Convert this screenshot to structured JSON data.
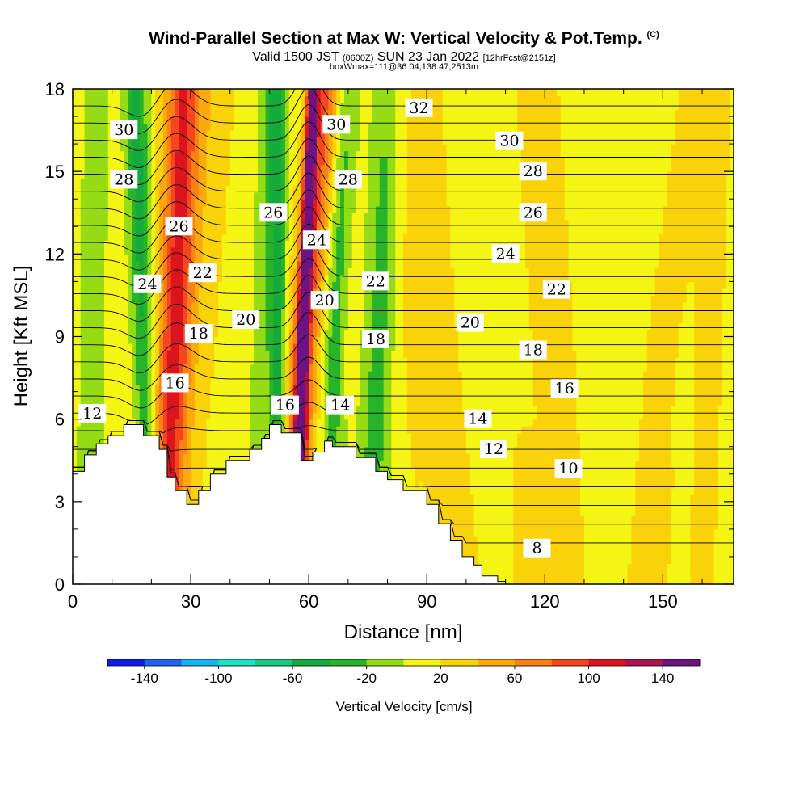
{
  "header": {
    "title_main": "Wind-Parallel Section at Max W: Vertical Velocity & Pot.Temp.",
    "title_mark": "(C)",
    "valid_pre": "Valid 1500 JST",
    "valid_utc": "(0600Z)",
    "valid_date": "SUN 23 Jan 2022",
    "valid_fcst": "[12hrFcst@2151z]",
    "box_info": "boxWmax=111@36.04,138.47,2513m"
  },
  "chart_data": {
    "type": "heatmap",
    "xlabel": "Distance [nm]",
    "ylabel": "Height [Kft MSL]",
    "xlim": [
      0,
      168
    ],
    "ylim": [
      0,
      18
    ],
    "xticks": [
      0,
      30,
      60,
      90,
      120,
      150
    ],
    "yticks": [
      0,
      3,
      6,
      9,
      12,
      15,
      18
    ],
    "colorbar": {
      "label": "Vertical Velocity [cm/s]",
      "tick_labels": [
        -140,
        -100,
        -60,
        -20,
        20,
        60,
        100,
        140
      ],
      "levels": [
        -160,
        -140,
        -120,
        -100,
        -80,
        -60,
        -40,
        -20,
        0,
        20,
        40,
        60,
        80,
        100,
        120,
        140,
        160
      ],
      "colors": [
        "#0a1ee6",
        "#1e64f0",
        "#14b4f0",
        "#1ee1c8",
        "#19c87d",
        "#14aa3c",
        "#28b428",
        "#96dc14",
        "#f5f514",
        "#fad20a",
        "#faaa0a",
        "#fa8214",
        "#f5461e",
        "#dc141e",
        "#aa1450",
        "#6e1482"
      ]
    },
    "background_w": 10,
    "updraft_bands": [
      {
        "x": [
          23,
          26,
          28
        ],
        "w": 70,
        "width": 4.0
      },
      {
        "x": [
          21,
          27,
          32
        ],
        "w": 30,
        "width": 9.0
      },
      {
        "x": [
          57,
          58.5,
          61
        ],
        "w": 130,
        "width": 1.4
      },
      {
        "x": [
          55,
          59,
          64
        ],
        "w": 75,
        "width": 4.0
      },
      {
        "x": [
          66,
          68,
          70
        ],
        "w": 30,
        "width": 3.0
      },
      {
        "x": [
          96,
          90,
          86
        ],
        "w": 25,
        "width": 8.0
      },
      {
        "x": [
          125,
          122,
          118
        ],
        "w": 18,
        "width": 7.0
      },
      {
        "x": [
          145,
          150,
          158
        ],
        "w": 15,
        "width": 6.0
      },
      {
        "x": [
          160,
          162,
          164
        ],
        "w": 18,
        "width": 4.0
      },
      {
        "x": [
          116,
          116,
          116
        ],
        "w": 20,
        "width": 4.0,
        "ztop": 5
      },
      {
        "x": [
          148,
          150,
          152
        ],
        "w": 15,
        "width": 3.0,
        "ztop": 4
      }
    ],
    "downdraft_bands": [
      {
        "x": [
          20,
          18,
          16
        ],
        "w": -60,
        "width": 3.0
      },
      {
        "x": [
          4,
          5,
          6
        ],
        "w": -30,
        "width": 3.0
      },
      {
        "x": [
          53,
          52,
          52
        ],
        "w": -55,
        "width": 2.0
      },
      {
        "x": [
          47,
          49,
          50
        ],
        "w": -20,
        "width": 4.0
      },
      {
        "x": [
          66,
          67,
          70
        ],
        "w": -65,
        "width": 3.0
      },
      {
        "x": [
          75,
          78,
          80
        ],
        "w": -40,
        "width": 4.0
      },
      {
        "x": [
          92,
          88,
          86
        ],
        "w": -10,
        "width": 3.0
      }
    ],
    "terrain": {
      "x": [
        0,
        3,
        3,
        6,
        6,
        9,
        9,
        13,
        13,
        18,
        18,
        22,
        22,
        24,
        24,
        26,
        26,
        29,
        29,
        32,
        32,
        35,
        35,
        39,
        39,
        45,
        45,
        48,
        48,
        50,
        50,
        53,
        53,
        58,
        58,
        61,
        61,
        64,
        64,
        66,
        66,
        72,
        72,
        77,
        77,
        80,
        80,
        84,
        84,
        90,
        90,
        93,
        93,
        96,
        96,
        99,
        99,
        102,
        102,
        104,
        104,
        108,
        108,
        110,
        110,
        168
      ],
      "z": [
        4.1,
        4.1,
        4.7,
        4.7,
        5.1,
        5.1,
        5.4,
        5.4,
        5.8,
        5.8,
        5.4,
        5.4,
        4.9,
        4.9,
        3.9,
        3.9,
        3.4,
        3.4,
        2.9,
        2.9,
        3.4,
        3.4,
        4.0,
        4.0,
        4.5,
        4.5,
        4.9,
        4.9,
        5.3,
        5.3,
        5.8,
        5.8,
        5.5,
        5.5,
        4.5,
        4.5,
        4.8,
        4.8,
        5.2,
        5.2,
        5.0,
        5.0,
        4.6,
        4.6,
        4.1,
        4.1,
        3.8,
        3.8,
        3.4,
        3.4,
        2.9,
        2.9,
        2.2,
        2.2,
        1.6,
        1.6,
        1.0,
        1.0,
        0.7,
        0.7,
        0.3,
        0.3,
        0.1,
        0.1,
        0.0,
        0.0
      ]
    },
    "isentropes": [
      8,
      9,
      10,
      11,
      12,
      13,
      14,
      15,
      16,
      17,
      18,
      19,
      20,
      21,
      22,
      23,
      24,
      25,
      26,
      27,
      28,
      29,
      30,
      31,
      32,
      33
    ],
    "isentrope_labels": [
      {
        "value": 8,
        "x": 118,
        "z": 1.3
      },
      {
        "value": 10,
        "x": 126,
        "z": 4.2
      },
      {
        "value": 12,
        "x": 5,
        "z": 6.2
      },
      {
        "value": 12,
        "x": 107,
        "z": 4.9
      },
      {
        "value": 14,
        "x": 68,
        "z": 6.5
      },
      {
        "value": 14,
        "x": 103,
        "z": 6.0
      },
      {
        "value": 16,
        "x": 26,
        "z": 7.3
      },
      {
        "value": 16,
        "x": 54,
        "z": 6.5
      },
      {
        "value": 16,
        "x": 125,
        "z": 7.1
      },
      {
        "value": 18,
        "x": 32,
        "z": 9.1
      },
      {
        "value": 18,
        "x": 77,
        "z": 8.9
      },
      {
        "value": 18,
        "x": 117,
        "z": 8.5
      },
      {
        "value": 20,
        "x": 44,
        "z": 9.6
      },
      {
        "value": 20,
        "x": 64,
        "z": 10.3
      },
      {
        "value": 20,
        "x": 101,
        "z": 9.5
      },
      {
        "value": 22,
        "x": 33,
        "z": 11.3
      },
      {
        "value": 22,
        "x": 77,
        "z": 11.0
      },
      {
        "value": 22,
        "x": 123,
        "z": 10.7
      },
      {
        "value": 24,
        "x": 19,
        "z": 10.9
      },
      {
        "value": 24,
        "x": 62,
        "z": 12.5
      },
      {
        "value": 24,
        "x": 110,
        "z": 12.0
      },
      {
        "value": 26,
        "x": 27,
        "z": 13.0
      },
      {
        "value": 26,
        "x": 51,
        "z": 13.5
      },
      {
        "value": 26,
        "x": 117,
        "z": 13.5
      },
      {
        "value": 28,
        "x": 13,
        "z": 14.7
      },
      {
        "value": 28,
        "x": 70,
        "z": 14.7
      },
      {
        "value": 28,
        "x": 117,
        "z": 15.0
      },
      {
        "value": 30,
        "x": 13,
        "z": 16.5
      },
      {
        "value": 30,
        "x": 67,
        "z": 16.7
      },
      {
        "value": 30,
        "x": 111,
        "z": 16.1
      },
      {
        "value": 32,
        "x": 88,
        "z": 17.3
      }
    ]
  }
}
